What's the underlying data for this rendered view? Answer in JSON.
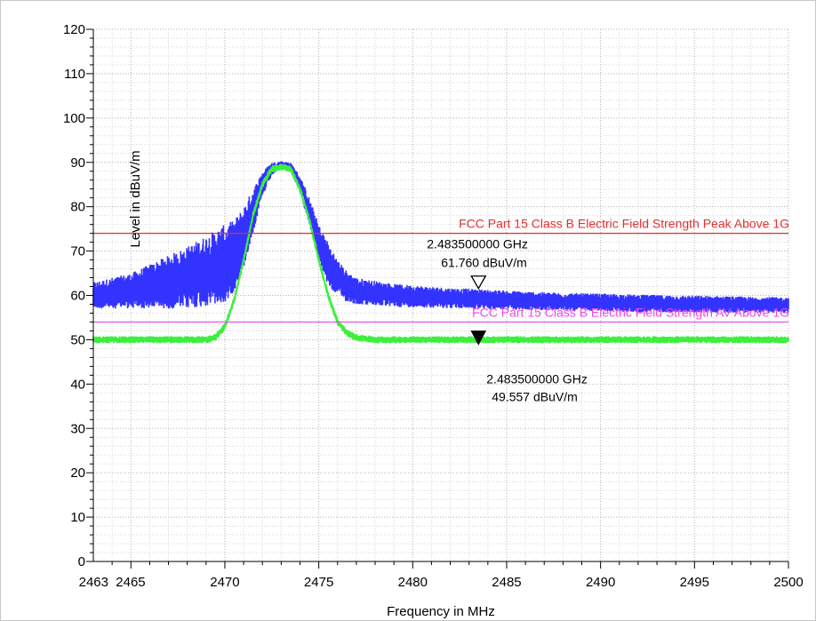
{
  "chart_data": {
    "type": "line",
    "xlabel": "Frequency in MHz",
    "ylabel": "Level in dBuV/m",
    "xlim": [
      2463,
      2500
    ],
    "ylim": [
      0,
      120
    ],
    "x_ticks": [
      2463,
      2465,
      2470,
      2475,
      2480,
      2485,
      2490,
      2495,
      2500
    ],
    "x_tick_labels": [
      "2463",
      "2465",
      "2470",
      "2475",
      "2480",
      "2485",
      "2490",
      "2495",
      "2500"
    ],
    "y_ticks": [
      0,
      10,
      20,
      30,
      40,
      50,
      60,
      70,
      80,
      90,
      100,
      110,
      120
    ],
    "grid": true,
    "series": [
      {
        "color": "#3333ff",
        "x": [
          2463,
          2464,
          2465,
          2466,
          2467,
          2468,
          2469,
          2470,
          2470.5,
          2471,
          2471.5,
          2472,
          2472.5,
          2473,
          2473.5,
          2474,
          2474.5,
          2475,
          2475.5,
          2476,
          2476.5,
          2477,
          2478,
          2479,
          2480,
          2482,
          2484,
          2486,
          2488,
          2490,
          2492,
          2494,
          2496,
          2498,
          2500
        ],
        "values": [
          60,
          60.5,
          61,
          62,
          63,
          64,
          65.5,
          67,
          69,
          73,
          79,
          85,
          88.5,
          89.5,
          89,
          85,
          79,
          72,
          67,
          64,
          62,
          61,
          60.5,
          60,
          59.8,
          59.4,
          59.1,
          58.8,
          58.6,
          58.4,
          58.2,
          58.1,
          58,
          57.9,
          57.8
        ],
        "spread": [
          3,
          3.5,
          4,
          5,
          6,
          7,
          8,
          9,
          8,
          7,
          5,
          3,
          1.5,
          0.8,
          1,
          2,
          3,
          4,
          5,
          4,
          3.5,
          3,
          2.8,
          2.6,
          2.5,
          2.3,
          2.2,
          2.1,
          2,
          2,
          2,
          1.9,
          1.9,
          1.8,
          1.8
        ]
      },
      {
        "color": "#3dee3d",
        "x": [
          2463,
          2466,
          2469,
          2469.5,
          2470,
          2470.5,
          2471,
          2471.5,
          2472,
          2472.5,
          2473,
          2473.5,
          2474,
          2474.5,
          2475,
          2475.5,
          2476,
          2476.5,
          2477,
          2478,
          2481,
          2485,
          2490,
          2495,
          2500
        ],
        "values": [
          50,
          50,
          50,
          50.5,
          53,
          59,
          68,
          78,
          85,
          88.5,
          89,
          88.5,
          84,
          77,
          68,
          60,
          54,
          51.5,
          50.5,
          50,
          50,
          50,
          50,
          50,
          50
        ],
        "spread": [
          0.8,
          0.8,
          0.8,
          0.8,
          0.8,
          0.8,
          0.8,
          0.8,
          0.8,
          0.8,
          0.8,
          0.8,
          0.8,
          0.8,
          0.8,
          0.8,
          0.8,
          0.8,
          0.8,
          0.8,
          0.8,
          0.8,
          0.8,
          0.8,
          0.8
        ]
      }
    ],
    "limit_lines": [
      {
        "name": "FCC Part 15 Class B Electric Field Strength Peak Above 1G",
        "value": 74,
        "color": "#e03030"
      },
      {
        "name": "FCC Part 15 Class B Electric Field Strength AV Above 1G",
        "value": 54,
        "color": "#ee44ee"
      }
    ],
    "markers": [
      {
        "x": 2483.5,
        "y": 61.76,
        "style": "open",
        "freq_label": "2.483500000 GHz",
        "level_label": "61.760 dBuV/m"
      },
      {
        "x": 2483.5,
        "y": 49.557,
        "style": "filled",
        "freq_label": "2.483500000 GHz",
        "level_label": "49.557 dBuV/m"
      }
    ]
  }
}
